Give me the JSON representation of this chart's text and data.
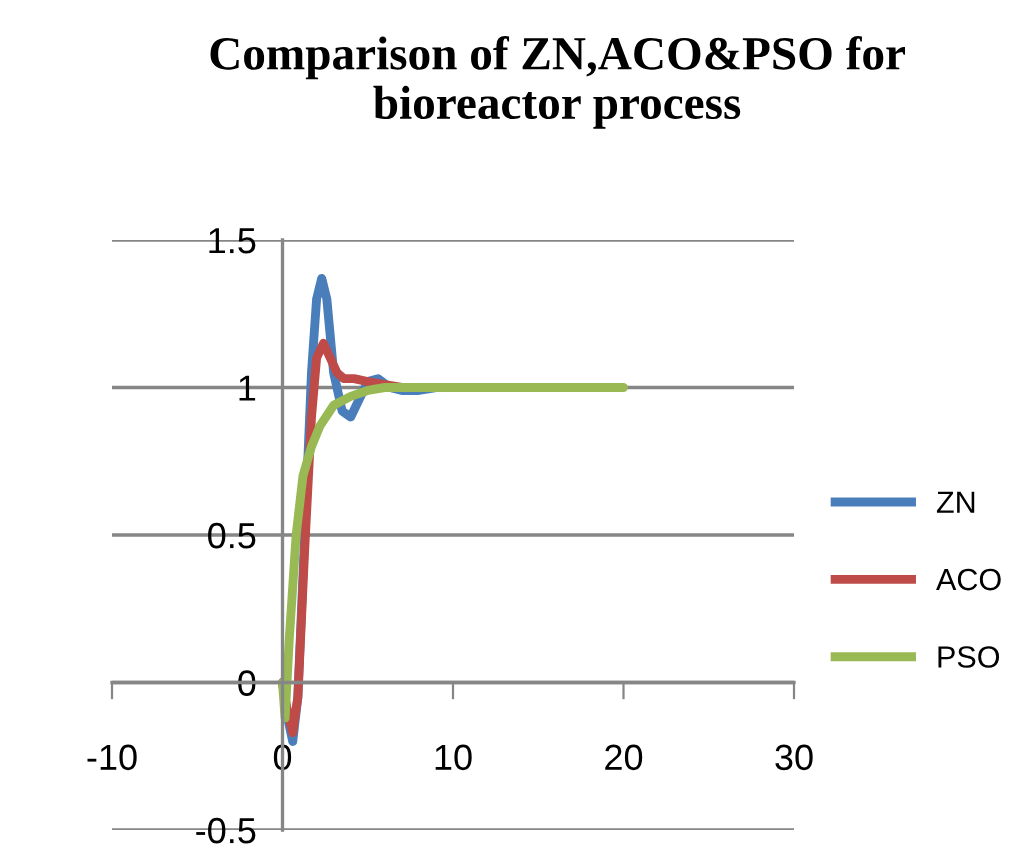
{
  "chart_data": {
    "type": "line",
    "title": "Comparison of ZN,ACO&PSO for bioreactor process",
    "xlim": [
      -10,
      30
    ],
    "xticks": [
      -10,
      0,
      10,
      20,
      30
    ],
    "ylim": [
      -0.5,
      1.5
    ],
    "yticks": [
      -0.5,
      0,
      0.5,
      1,
      1.5
    ],
    "grid": "y",
    "legend": "right",
    "marker": "none",
    "line_style": "solid",
    "series": [
      {
        "name": "ZN",
        "color": "#4a7ebb",
        "x": [
          0,
          0.3,
          0.6,
          0.9,
          1.3,
          1.7,
          2.0,
          2.3,
          2.6,
          3.0,
          3.5,
          4.0,
          4.5,
          5.0,
          5.6,
          6.3,
          7.0,
          8.0,
          9.0
        ],
        "values": [
          0,
          -0.12,
          -0.2,
          -0.05,
          0.5,
          1.05,
          1.3,
          1.37,
          1.3,
          1.05,
          0.92,
          0.9,
          0.96,
          1.02,
          1.03,
          1.0,
          0.99,
          0.99,
          1.0
        ]
      },
      {
        "name": "ACO",
        "color": "#be4b48",
        "x": [
          0,
          0.3,
          0.6,
          0.9,
          1.3,
          1.7,
          2.0,
          2.4,
          2.8,
          3.2,
          3.6,
          4.2,
          5.0,
          6.0,
          7.0
        ],
        "values": [
          0,
          -0.1,
          -0.17,
          -0.05,
          0.45,
          0.9,
          1.1,
          1.15,
          1.1,
          1.05,
          1.03,
          1.03,
          1.02,
          1.01,
          1.0
        ]
      },
      {
        "name": "PSO",
        "color": "#98b954",
        "x": [
          0,
          0.15,
          0.4,
          0.8,
          1.2,
          1.7,
          2.2,
          3.0,
          4.0,
          5.0,
          6.0,
          8.0,
          10,
          14,
          20
        ],
        "values": [
          0,
          -0.12,
          0.15,
          0.5,
          0.7,
          0.8,
          0.87,
          0.94,
          0.97,
          0.99,
          1.0,
          1.0,
          1.0,
          1.0,
          1.0
        ]
      }
    ]
  }
}
